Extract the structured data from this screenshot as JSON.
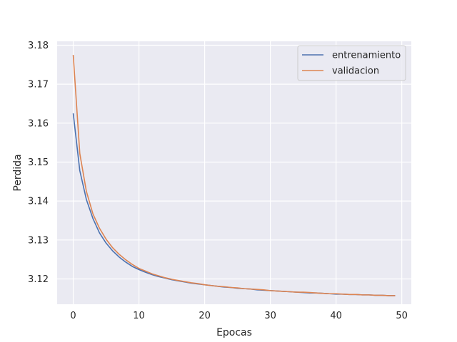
{
  "chart_data": {
    "type": "line",
    "title": "",
    "xlabel": "Epocas",
    "ylabel": "Perdida",
    "xlim": [
      -2.45,
      51.45
    ],
    "ylim": [
      3.1135,
      3.181
    ],
    "xticks": [
      0,
      10,
      20,
      30,
      40,
      50
    ],
    "yticks": [
      3.12,
      3.13,
      3.14,
      3.15,
      3.16,
      3.17,
      3.18
    ],
    "grid": true,
    "legend_position": "top-right",
    "x": [
      0,
      1,
      2,
      3,
      4,
      5,
      6,
      7,
      8,
      9,
      10,
      11,
      12,
      13,
      14,
      15,
      16,
      17,
      18,
      19,
      20,
      21,
      22,
      23,
      24,
      25,
      26,
      27,
      28,
      29,
      30,
      31,
      32,
      33,
      34,
      35,
      36,
      37,
      38,
      39,
      40,
      41,
      42,
      43,
      44,
      45,
      46,
      47,
      48,
      49
    ],
    "series": [
      {
        "name": "entrenamiento",
        "color": "#4c72b0",
        "values": [
          3.1625,
          3.1478,
          3.1404,
          3.1355,
          3.1318,
          3.1292,
          3.1272,
          3.1256,
          3.1243,
          3.1232,
          3.1224,
          3.1217,
          3.1211,
          3.1206,
          3.1202,
          3.1198,
          3.1195,
          3.1192,
          3.1189,
          3.1187,
          3.1185,
          3.1183,
          3.1181,
          3.1179,
          3.1178,
          3.1176,
          3.1175,
          3.1174,
          3.1172,
          3.1171,
          3.117,
          3.1169,
          3.1168,
          3.1167,
          3.1166,
          3.1165,
          3.1164,
          3.1164,
          3.1163,
          3.1162,
          3.1161,
          3.1161,
          3.116,
          3.116,
          3.1159,
          3.1159,
          3.1158,
          3.1158,
          3.1157,
          3.1157
        ]
      },
      {
        "name": "validacion",
        "color": "#dd8452",
        "values": [
          3.1775,
          3.1522,
          3.1425,
          3.1367,
          3.133,
          3.1302,
          3.128,
          3.1263,
          3.1249,
          3.1237,
          3.1227,
          3.122,
          3.1213,
          3.1208,
          3.1203,
          3.1199,
          3.1196,
          3.1193,
          3.119,
          3.1188,
          3.1185,
          3.1183,
          3.1181,
          3.118,
          3.1178,
          3.1177,
          3.1175,
          3.1174,
          3.1173,
          3.1172,
          3.117,
          3.1169,
          3.1168,
          3.1167,
          3.1166,
          3.1166,
          3.1165,
          3.1164,
          3.1163,
          3.1162,
          3.1162,
          3.1161,
          3.116,
          3.116,
          3.1159,
          3.1159,
          3.1158,
          3.1158,
          3.1157,
          3.1157
        ]
      }
    ]
  }
}
